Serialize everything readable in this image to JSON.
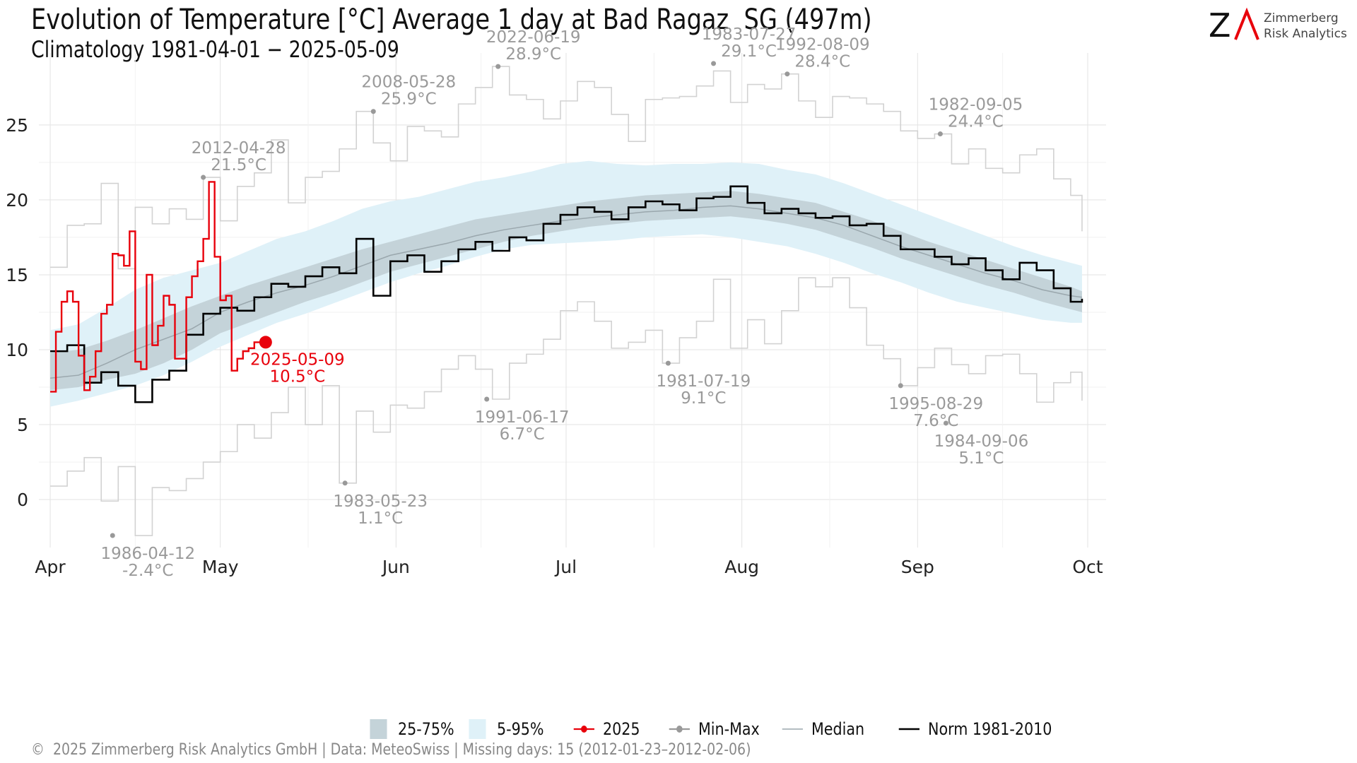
{
  "title": "Evolution of Temperature [°C] Average 1 day at Bad Ragaz  SG (497m)",
  "subtitle": "Climatology 1981-04-01 − 2025-05-09",
  "logo": {
    "glyph": "ZΛ",
    "line1": "Zimmerberg",
    "line2": "Risk Analytics"
  },
  "footer": "©  2025 Zimmerberg Risk Analytics GmbH | Data: MeteoSwiss | Missing days: 15 (2012-01-23–2012-02-06)",
  "legend": [
    {
      "label": "25-75%",
      "color": "#c4d3d9"
    },
    {
      "label": "5-95%",
      "color": "#dff1f8"
    },
    {
      "label": "2025",
      "color": "#e8000b"
    },
    {
      "label": "Min-Max",
      "color": "#999999"
    },
    {
      "label": "Median",
      "color": "#9aa7ad"
    },
    {
      "label": "Norm 1981-2010",
      "color": "#000000"
    }
  ],
  "colors": {
    "band5_95": "#dff1f8",
    "band25_75": "#c4d3d9",
    "median": "#9aa7ad",
    "norm": "#000000",
    "minmax": "#d2d2d2",
    "minmax_point": "#999999",
    "y2025": "#e8000b"
  },
  "chart_data": {
    "type": "line",
    "x_axis_labels": [
      "Apr",
      "May",
      "Jun",
      "Jul",
      "Aug",
      "Sep",
      "Oct"
    ],
    "x_tick_days": [
      0,
      30,
      61,
      91,
      122,
      153,
      183
    ],
    "x_unit": "day since Apr 1",
    "y_ticks": [
      0,
      5,
      10,
      15,
      20,
      25
    ],
    "ylim": [
      -3.2,
      29.8
    ],
    "xlim": [
      -2,
      185
    ],
    "grid": true,
    "legend_position": "bottom",
    "annotations": [
      {
        "date": "1986-04-12",
        "text": "-2.4°C",
        "x": 11,
        "y": -2.4
      },
      {
        "date": "2012-04-28",
        "text": "21.5°C",
        "x": 27,
        "y": 21.5
      },
      {
        "date": "2008-05-28",
        "text": "25.9°C",
        "x": 57,
        "y": 25.9
      },
      {
        "date": "1983-05-23",
        "text": "1.1°C",
        "x": 52,
        "y": 1.1
      },
      {
        "date": "2022-06-19",
        "text": "28.9°C",
        "x": 79,
        "y": 28.9
      },
      {
        "date": "1991-06-17",
        "text": "6.7°C",
        "x": 77,
        "y": 6.7
      },
      {
        "date": "1981-07-19",
        "text": "9.1°C",
        "x": 109,
        "y": 9.1
      },
      {
        "date": "1983-07-27",
        "text": "29.1°C",
        "x": 117,
        "y": 29.1
      },
      {
        "date": "1992-08-09",
        "text": "28.4°C",
        "x": 130,
        "y": 28.4
      },
      {
        "date": "1995-08-29",
        "text": "7.6°C",
        "x": 150,
        "y": 7.6
      },
      {
        "date": "1982-09-05",
        "text": "24.4°C",
        "x": 157,
        "y": 24.4
      },
      {
        "date": "1984-09-06",
        "text": "5.1°C",
        "x": 158,
        "y": 5.1
      },
      {
        "date": "2025-05-09",
        "text": "10.5°C",
        "x": 38,
        "y": 10.5,
        "highlight": true
      }
    ],
    "series": [
      {
        "name": "5-95%",
        "kind": "band",
        "x": [
          0,
          5,
          10,
          15,
          20,
          25,
          30,
          35,
          40,
          45,
          50,
          55,
          60,
          65,
          70,
          75,
          80,
          85,
          90,
          95,
          100,
          105,
          110,
          115,
          120,
          125,
          130,
          135,
          140,
          145,
          150,
          155,
          160,
          165,
          170,
          175,
          180,
          182
        ],
        "low": [
          6.2,
          6.6,
          7.1,
          7.6,
          8.3,
          9.2,
          10.2,
          11.0,
          11.8,
          12.4,
          13.1,
          13.8,
          14.5,
          15.1,
          15.6,
          16.2,
          16.7,
          17.0,
          17.1,
          17.2,
          17.3,
          17.5,
          17.6,
          17.7,
          17.5,
          17.2,
          16.9,
          16.4,
          15.8,
          15.1,
          14.5,
          13.8,
          13.2,
          12.8,
          12.4,
          12.0,
          11.8,
          11.8
        ],
        "high": [
          11.3,
          11.7,
          12.8,
          14.0,
          14.8,
          15.3,
          15.8,
          16.6,
          17.4,
          17.9,
          18.6,
          19.4,
          19.9,
          20.2,
          20.7,
          21.2,
          21.5,
          21.9,
          22.4,
          22.6,
          22.4,
          22.3,
          22.4,
          22.4,
          22.5,
          22.4,
          22.0,
          21.7,
          21.1,
          20.4,
          19.7,
          19.0,
          18.3,
          17.6,
          16.9,
          16.3,
          15.8,
          15.6
        ]
      },
      {
        "name": "25-75%",
        "kind": "band",
        "x": [
          0,
          5,
          10,
          15,
          20,
          25,
          30,
          35,
          40,
          45,
          50,
          55,
          60,
          65,
          70,
          75,
          80,
          85,
          90,
          95,
          100,
          105,
          110,
          115,
          120,
          125,
          130,
          135,
          140,
          145,
          150,
          155,
          160,
          165,
          170,
          175,
          180,
          182
        ],
        "low": [
          7.3,
          7.5,
          8.0,
          8.4,
          9.1,
          10.0,
          11.1,
          11.8,
          12.5,
          13.2,
          13.8,
          14.5,
          15.2,
          15.7,
          16.2,
          16.7,
          17.2,
          17.6,
          17.9,
          18.2,
          18.4,
          18.6,
          18.7,
          18.8,
          18.9,
          18.7,
          18.4,
          18.0,
          17.4,
          16.8,
          16.1,
          15.5,
          14.9,
          14.3,
          13.8,
          13.2,
          12.7,
          12.5
        ],
        "high": [
          9.8,
          10.0,
          10.6,
          11.3,
          12.1,
          12.9,
          13.6,
          14.3,
          14.9,
          15.5,
          16.1,
          16.7,
          17.2,
          17.7,
          18.2,
          18.7,
          19.0,
          19.3,
          19.6,
          19.9,
          20.1,
          20.3,
          20.4,
          20.5,
          20.6,
          20.4,
          20.1,
          19.8,
          19.2,
          18.6,
          17.9,
          17.2,
          16.6,
          16.0,
          15.4,
          14.8,
          14.2,
          13.9
        ]
      },
      {
        "name": "Median",
        "x": [
          0,
          5,
          10,
          15,
          20,
          25,
          30,
          35,
          40,
          45,
          50,
          55,
          60,
          65,
          70,
          75,
          80,
          85,
          90,
          95,
          100,
          105,
          110,
          115,
          120,
          125,
          130,
          135,
          140,
          145,
          150,
          155,
          160,
          165,
          170,
          175,
          180,
          182
        ],
        "y": [
          8.1,
          8.3,
          9.1,
          10.0,
          10.7,
          11.4,
          12.5,
          13.2,
          13.8,
          14.3,
          14.9,
          15.6,
          16.3,
          16.7,
          17.1,
          17.6,
          18.0,
          18.3,
          18.6,
          18.8,
          19.0,
          19.2,
          19.3,
          19.5,
          19.6,
          19.4,
          19.1,
          18.8,
          18.3,
          17.6,
          16.9,
          16.3,
          15.7,
          15.1,
          14.6,
          14.0,
          13.6,
          13.5
        ]
      },
      {
        "name": "Norm 1981-2010",
        "x": [
          0,
          3,
          6,
          9,
          12,
          15,
          18,
          21,
          24,
          27,
          30,
          33,
          36,
          39,
          42,
          45,
          48,
          51,
          54,
          57,
          60,
          63,
          66,
          69,
          72,
          75,
          78,
          81,
          84,
          87,
          90,
          93,
          96,
          99,
          102,
          105,
          108,
          111,
          114,
          117,
          120,
          123,
          126,
          129,
          132,
          135,
          138,
          141,
          144,
          147,
          150,
          153,
          156,
          159,
          162,
          165,
          168,
          171,
          174,
          177,
          180,
          182
        ],
        "y": [
          9.9,
          10.3,
          7.8,
          8.5,
          7.6,
          6.5,
          8.0,
          8.6,
          11.0,
          12.4,
          12.8,
          12.6,
          13.5,
          14.4,
          14.2,
          14.9,
          15.5,
          15.1,
          17.4,
          13.6,
          15.9,
          16.3,
          15.2,
          15.9,
          16.7,
          17.2,
          16.6,
          17.5,
          17.3,
          18.4,
          19.0,
          19.5,
          19.2,
          18.7,
          19.5,
          19.9,
          19.7,
          19.3,
          20.1,
          20.2,
          20.9,
          19.8,
          19.1,
          19.4,
          19.1,
          18.8,
          18.9,
          18.3,
          18.4,
          17.6,
          16.7,
          16.7,
          16.2,
          15.7,
          16.1,
          15.3,
          14.7,
          15.8,
          15.3,
          14.1,
          13.2,
          13.4
        ]
      },
      {
        "name": "2025",
        "x": [
          0,
          1,
          2,
          3,
          4,
          5,
          6,
          7,
          8,
          9,
          10,
          11,
          12,
          13,
          14,
          15,
          16,
          17,
          18,
          19,
          20,
          21,
          22,
          23,
          24,
          25,
          26,
          27,
          28,
          29,
          30,
          31,
          32,
          33,
          34,
          35,
          36,
          37,
          38
        ],
        "y": [
          7.2,
          11.2,
          13.2,
          13.9,
          13.2,
          9.6,
          7.3,
          8.2,
          9.9,
          12.4,
          13.0,
          16.4,
          16.3,
          15.6,
          17.9,
          9.2,
          8.7,
          15.0,
          10.3,
          11.6,
          13.6,
          13.0,
          9.4,
          9.4,
          13.5,
          14.9,
          15.9,
          17.4,
          21.2,
          16.2,
          13.3,
          13.6,
          8.6,
          9.4,
          9.9,
          10.1,
          10.5,
          10.5,
          10.5
        ]
      },
      {
        "name": "Max",
        "kind": "envelope",
        "x": [
          0,
          3,
          6,
          9,
          12,
          15,
          18,
          21,
          24,
          27,
          30,
          33,
          36,
          39,
          42,
          45,
          48,
          51,
          54,
          57,
          60,
          63,
          66,
          69,
          72,
          75,
          78,
          81,
          84,
          87,
          90,
          93,
          96,
          99,
          102,
          105,
          108,
          111,
          114,
          117,
          120,
          123,
          126,
          129,
          132,
          135,
          138,
          141,
          144,
          147,
          150,
          153,
          156,
          159,
          162,
          165,
          168,
          171,
          174,
          177,
          180,
          182
        ],
        "y": [
          15.5,
          18.3,
          18.4,
          21.1,
          15.4,
          19.5,
          18.4,
          19.4,
          18.7,
          21.5,
          18.6,
          20.9,
          21.8,
          24.0,
          19.8,
          21.5,
          21.9,
          23.4,
          25.9,
          23.8,
          22.6,
          24.9,
          24.6,
          24.2,
          26.4,
          27.5,
          28.9,
          27.0,
          26.7,
          25.4,
          26.6,
          27.9,
          27.5,
          25.7,
          23.9,
          26.7,
          26.8,
          26.9,
          27.6,
          28.6,
          26.5,
          27.7,
          27.4,
          28.4,
          26.6,
          25.5,
          26.9,
          26.8,
          26.4,
          25.9,
          24.6,
          24.1,
          24.4,
          22.4,
          23.4,
          22.1,
          21.8,
          23.0,
          23.4,
          21.4,
          20.3,
          17.9
        ]
      },
      {
        "name": "Min",
        "kind": "envelope",
        "x": [
          0,
          3,
          6,
          9,
          12,
          15,
          18,
          21,
          24,
          27,
          30,
          33,
          36,
          39,
          42,
          45,
          48,
          51,
          54,
          57,
          60,
          63,
          66,
          69,
          72,
          75,
          78,
          81,
          84,
          87,
          90,
          93,
          96,
          99,
          102,
          105,
          108,
          111,
          114,
          117,
          120,
          123,
          126,
          129,
          132,
          135,
          138,
          141,
          144,
          147,
          150,
          153,
          156,
          159,
          162,
          165,
          168,
          171,
          174,
          177,
          180,
          182
        ],
        "y": [
          0.9,
          1.9,
          2.8,
          -0.1,
          2.2,
          -2.4,
          0.8,
          0.6,
          1.4,
          2.5,
          3.2,
          5.0,
          4.1,
          5.8,
          7.5,
          5.0,
          7.6,
          1.1,
          5.9,
          4.5,
          6.3,
          6.1,
          7.2,
          8.7,
          9.6,
          8.7,
          6.7,
          9.1,
          9.7,
          10.7,
          12.6,
          13.2,
          11.9,
          10.1,
          10.5,
          11.3,
          9.1,
          10.8,
          11.9,
          14.7,
          10.1,
          12.0,
          10.4,
          12.6,
          14.8,
          14.2,
          14.8,
          12.8,
          10.3,
          9.4,
          7.6,
          8.8,
          10.1,
          9.0,
          8.4,
          9.6,
          9.7,
          8.4,
          6.5,
          7.8,
          8.5,
          6.6
        ]
      }
    ]
  }
}
